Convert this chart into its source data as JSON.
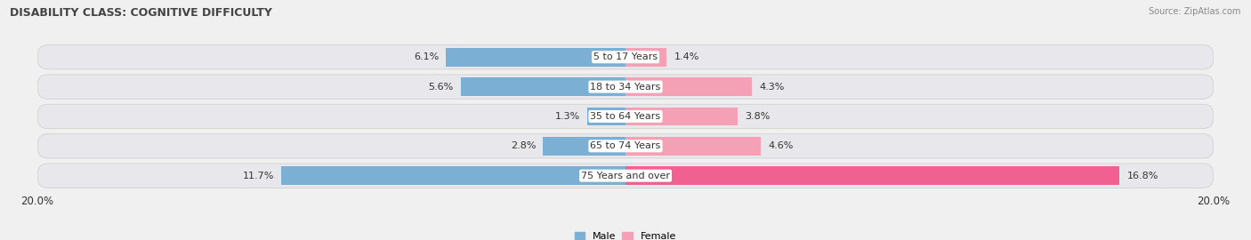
{
  "title": "DISABILITY CLASS: COGNITIVE DIFFICULTY",
  "source": "Source: ZipAtlas.com",
  "categories": [
    "5 to 17 Years",
    "18 to 34 Years",
    "35 to 64 Years",
    "65 to 74 Years",
    "75 Years and over"
  ],
  "male_values": [
    6.1,
    5.6,
    1.3,
    2.8,
    11.7
  ],
  "female_values": [
    1.4,
    4.3,
    3.8,
    4.6,
    16.8
  ],
  "male_color": "#7bafd4",
  "female_color": "#f4a0b5",
  "female_color_last": "#f06090",
  "male_label": "Male",
  "female_label": "Female",
  "x_max": 20.0,
  "background_color": "#f0f0f0",
  "row_bg_odd": "#e8e8e8",
  "row_bg_even": "#d8d8d8",
  "title_fontsize": 9,
  "label_fontsize": 8,
  "tick_fontsize": 8.5,
  "source_fontsize": 7
}
